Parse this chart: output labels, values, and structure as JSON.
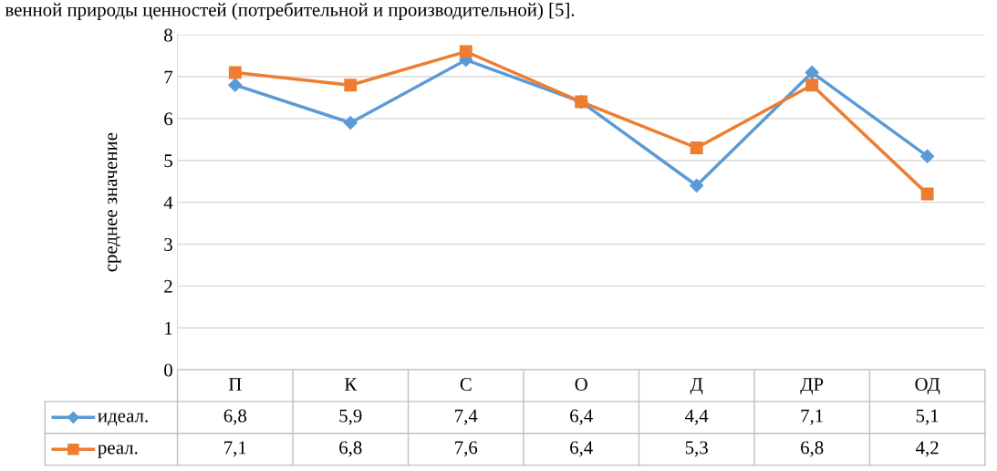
{
  "chart_data": {
    "type": "line",
    "ylabel": "среднее значение",
    "annotations": [
      "венной природы ценностей (потребительной и производительной) [5]."
    ],
    "categories": [
      "П",
      "К",
      "С",
      "О",
      "Д",
      "ДР",
      "ОД"
    ],
    "ylim": [
      0,
      8
    ],
    "yticks": [
      0,
      1,
      2,
      3,
      4,
      5,
      6,
      7,
      8
    ],
    "grid": "y",
    "legend": "left",
    "series": [
      {
        "name": "идеал.",
        "color": "#5b9bd5",
        "marker": "diamond",
        "values": [
          6.8,
          5.9,
          7.4,
          6.4,
          4.4,
          7.1,
          5.1
        ],
        "value_labels": [
          "6,8",
          "5,9",
          "7,4",
          "6,4",
          "4,4",
          "7,1",
          "5,1"
        ]
      },
      {
        "name": "реал.",
        "color": "#ed7d31",
        "marker": "square",
        "values": [
          7.1,
          6.8,
          7.6,
          6.4,
          5.3,
          6.8,
          4.2
        ],
        "value_labels": [
          "7,1",
          "6,8",
          "7,6",
          "6,4",
          "5,3",
          "6,8",
          "4,2"
        ]
      }
    ]
  }
}
